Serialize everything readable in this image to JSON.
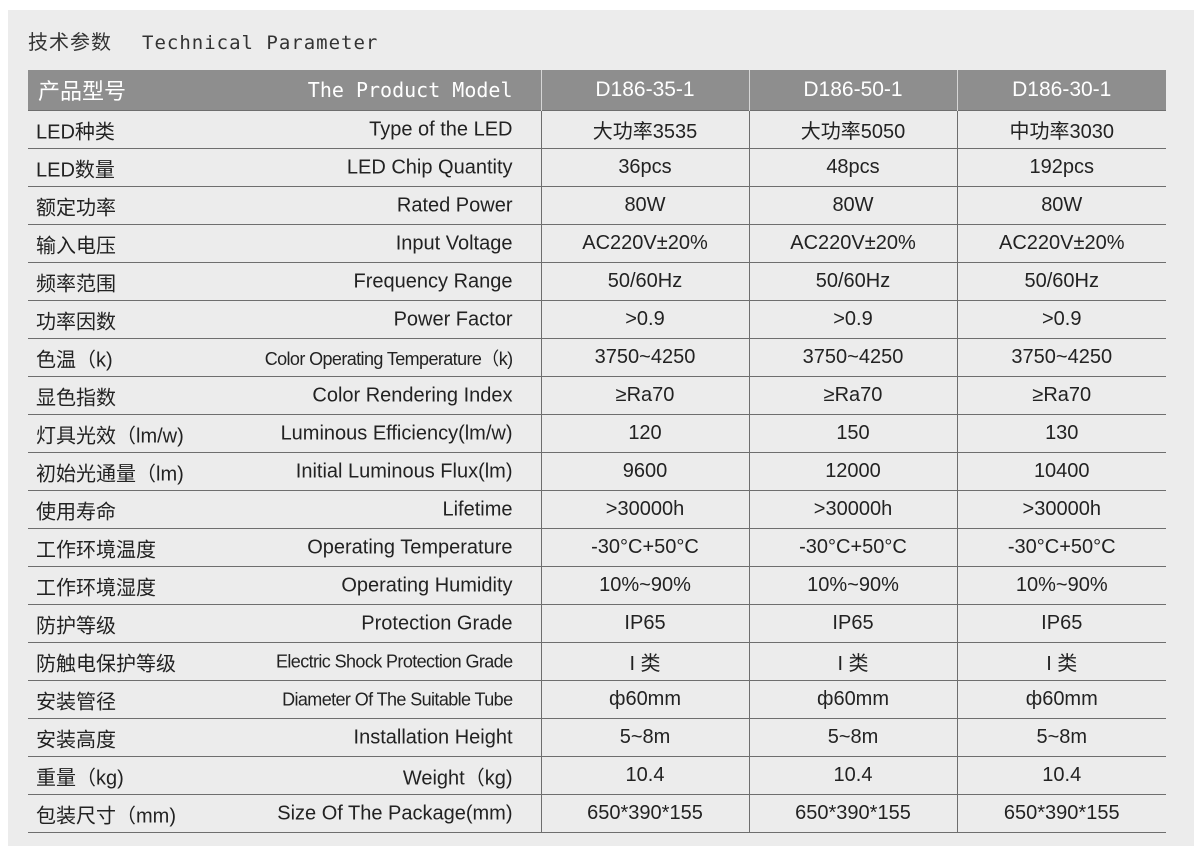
{
  "heading": {
    "cn": "技术参数",
    "en": "Technical Parameter"
  },
  "header": {
    "label_cn": "产品型号",
    "label_en": "The Product Model",
    "models": [
      "D186-35-1",
      "D186-50-1",
      "D186-30-1"
    ]
  },
  "rows": [
    {
      "cn": "LED种类",
      "en": "Type of the LED",
      "values": [
        "大功率3535",
        "大功率5050",
        "中功率3030"
      ]
    },
    {
      "cn": "LED数量",
      "en": "LED Chip Quantity",
      "values": [
        "36pcs",
        "48pcs",
        "192pcs"
      ]
    },
    {
      "cn": "额定功率",
      "en": "Rated Power",
      "values": [
        "80W",
        "80W",
        "80W"
      ]
    },
    {
      "cn": "输入电压",
      "en": "Input Voltage",
      "values": [
        "AC220V±20%",
        "AC220V±20%",
        "AC220V±20%"
      ]
    },
    {
      "cn": "频率范围",
      "en": "Frequency Range",
      "values": [
        "50/60Hz",
        "50/60Hz",
        "50/60Hz"
      ]
    },
    {
      "cn": "功率因数",
      "en": "Power Factor",
      "values": [
        ">0.9",
        ">0.9",
        ">0.9"
      ]
    },
    {
      "cn": "色温（k)",
      "en": "Color Operating Temperature（k)",
      "values": [
        "3750~4250",
        "3750~4250",
        "3750~4250"
      ]
    },
    {
      "cn": "显色指数",
      "en": "Color Rendering Index",
      "values": [
        "≥Ra70",
        "≥Ra70",
        "≥Ra70"
      ]
    },
    {
      "cn": "灯具光效（lm/w)",
      "en": "Luminous Efficiency(lm/w)",
      "values": [
        "120",
        "150",
        "130"
      ]
    },
    {
      "cn": "初始光通量（lm)",
      "en": "Initial Luminous Flux(lm)",
      "values": [
        "9600",
        "12000",
        "10400"
      ]
    },
    {
      "cn": "使用寿命",
      "en": "Lifetime",
      "values": [
        ">30000h",
        ">30000h",
        ">30000h"
      ]
    },
    {
      "cn": "工作环境温度",
      "en": "Operating Temperature",
      "values": [
        "-30°C+50°C",
        "-30°C+50°C",
        "-30°C+50°C"
      ]
    },
    {
      "cn": "工作环境湿度",
      "en": "Operating Humidity",
      "values": [
        "10%~90%",
        "10%~90%",
        "10%~90%"
      ]
    },
    {
      "cn": "防护等级",
      "en": "Protection Grade",
      "values": [
        "IP65",
        "IP65",
        "IP65"
      ]
    },
    {
      "cn": "防触电保护等级",
      "en": "Electric Shock Protection Grade",
      "values": [
        "I 类",
        "I 类",
        "I 类"
      ]
    },
    {
      "cn": "安装管径",
      "en": "Diameter Of The Suitable Tube",
      "values": [
        "ф60mm",
        "ф60mm",
        "ф60mm"
      ]
    },
    {
      "cn": "安装高度",
      "en": "Installation Height",
      "values": [
        "5~8m",
        "5~8m",
        "5~8m"
      ]
    },
    {
      "cn": "重量（kg)",
      "en": "Weight（kg)",
      "values": [
        "10.4",
        "10.4",
        "10.4"
      ]
    },
    {
      "cn": "包装尺寸（mm)",
      "en": "Size Of The Package(mm)",
      "values": [
        "650*390*155",
        "650*390*155",
        "650*390*155"
      ]
    }
  ]
}
